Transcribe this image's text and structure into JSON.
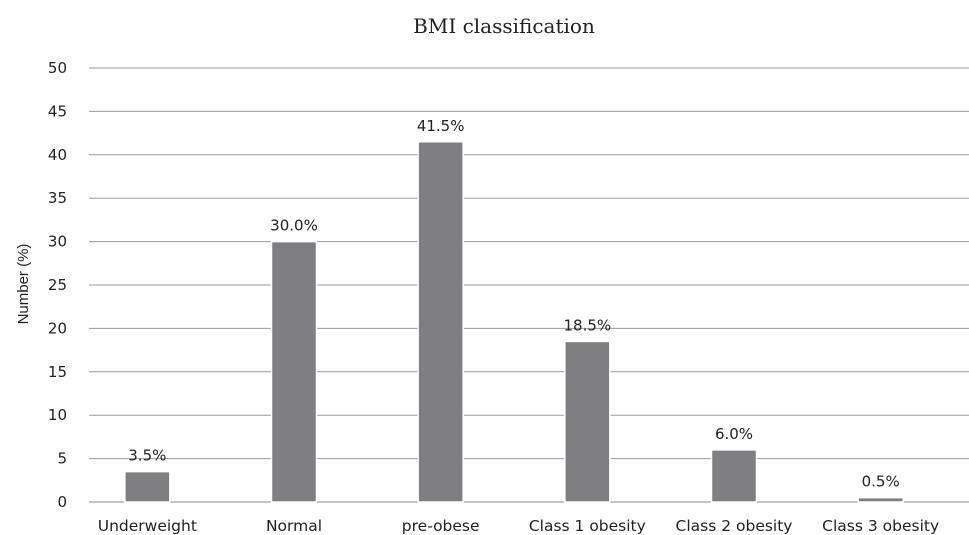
{
  "chart_data": {
    "type": "bar",
    "title": "BMI classification",
    "xlabel": "",
    "ylabel": "Number (%)",
    "categories": [
      "Underweight",
      "Normal",
      "pre-obese",
      "Class 1 obesity",
      "Class 2 obesity",
      "Class 3 obesity"
    ],
    "values": [
      3.5,
      30.0,
      41.5,
      18.5,
      6.0,
      0.5
    ],
    "data_labels": [
      "3.5%",
      "30.0%",
      "41.5%",
      "18.5%",
      "6.0%",
      "0.5%"
    ],
    "ylim": [
      0,
      50
    ],
    "y_ticks": [
      "0",
      "5",
      "10",
      "15",
      "20",
      "25",
      "30",
      "35",
      "40",
      "45",
      "50"
    ],
    "grid": true,
    "legend": "none",
    "colors": {
      "bar": "#7f7f82",
      "bar_outline": "#ffffff",
      "grid": "#9a9a9a",
      "text": "#222222"
    }
  }
}
